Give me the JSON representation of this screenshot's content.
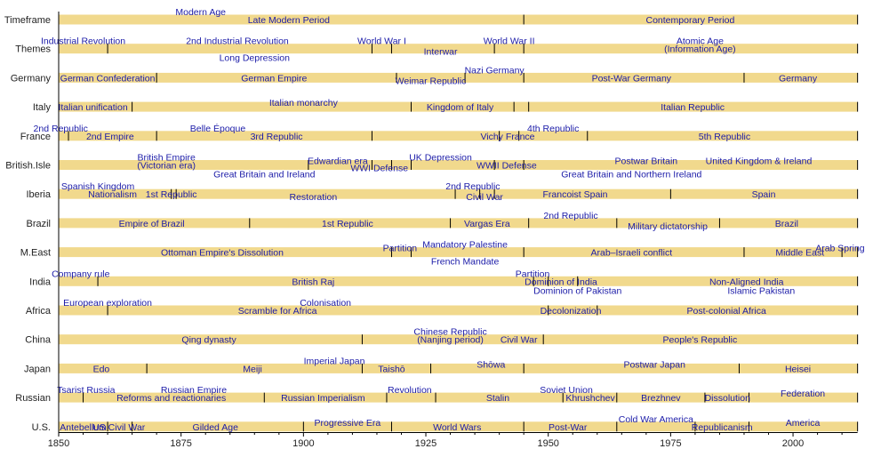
{
  "chart_data": {
    "type": "timeline",
    "xlim": [
      1850,
      2013
    ],
    "x_ticks": [
      1850,
      1875,
      1900,
      1925,
      1950,
      1975,
      2000
    ],
    "minor_tick_step": 5,
    "colors": {
      "bar": "#f1d98d",
      "label": "#1c1ca8",
      "divider": "#000000"
    },
    "rows": [
      {
        "name": "Timeframe",
        "dividers": [
          1945
        ],
        "labels": [
          {
            "text": "Modern Age",
            "year": 1879,
            "pos": "above"
          },
          {
            "text": "Late Modern Period",
            "year": 1897,
            "pos": "on"
          },
          {
            "text": "Contemporary Period",
            "year": 1979,
            "pos": "on"
          }
        ]
      },
      {
        "name": "Themes",
        "dividers": [
          1860,
          1914,
          1918,
          1939,
          1945
        ],
        "labels": [
          {
            "text": "Industrial Revolution",
            "year": 1855,
            "pos": "above"
          },
          {
            "text": "2nd Industrial Revolution",
            "year": 1886.5,
            "pos": "above"
          },
          {
            "text": "Long Depression",
            "year": 1890,
            "pos": "below"
          },
          {
            "text": "World War I",
            "year": 1916,
            "pos": "above"
          },
          {
            "text": "Interwar",
            "year": 1928,
            "pos": "low"
          },
          {
            "text": "World War II",
            "year": 1942,
            "pos": "above"
          },
          {
            "text": "Atomic Age",
            "year": 1981,
            "pos": "above"
          },
          {
            "text": "(Information Age)",
            "year": 1981,
            "pos": "on"
          }
        ]
      },
      {
        "name": "Germany",
        "dividers": [
          1870,
          1919,
          1933,
          1945,
          1990
        ],
        "labels": [
          {
            "text": "German Confederation",
            "year": 1860,
            "pos": "on"
          },
          {
            "text": "German Empire",
            "year": 1894,
            "pos": "on"
          },
          {
            "text": "Weimar Republic",
            "year": 1926,
            "pos": "low"
          },
          {
            "text": "Nazi Germany",
            "year": 1939,
            "pos": "above"
          },
          {
            "text": "Post-War Germany",
            "year": 1967,
            "pos": "on"
          },
          {
            "text": "Germany",
            "year": 2001,
            "pos": "on"
          }
        ]
      },
      {
        "name": "Italy",
        "dividers": [
          1865,
          1922,
          1943,
          1946
        ],
        "labels": [
          {
            "text": "Italian unification",
            "year": 1857,
            "pos": "on"
          },
          {
            "text": "Italian monarchy",
            "year": 1900,
            "pos": "high"
          },
          {
            "text": "Kingdom of Italy",
            "year": 1932,
            "pos": "on"
          },
          {
            "text": "Italian Republic",
            "year": 1979.5,
            "pos": "on"
          }
        ]
      },
      {
        "name": "France",
        "dividers": [
          1852,
          1870,
          1914,
          1940,
          1944,
          1958
        ],
        "labels": [
          {
            "text": "2nd Republic",
            "year": 1850.4,
            "pos": "above"
          },
          {
            "text": "2nd Empire",
            "year": 1860.5,
            "pos": "on"
          },
          {
            "text": "Belle Époque",
            "year": 1882.5,
            "pos": "above"
          },
          {
            "text": "3rd Republic",
            "year": 1894.5,
            "pos": "on"
          },
          {
            "text": "Vichy France",
            "year": 1941.7,
            "pos": "on"
          },
          {
            "text": "4th Republic",
            "year": 1951,
            "pos": "above"
          },
          {
            "text": "5th Republic",
            "year": 1986,
            "pos": "on"
          }
        ]
      },
      {
        "name": "British.Isle",
        "dividers": [
          1901,
          1914,
          1918,
          1922,
          1939,
          1945
        ],
        "labels": [
          {
            "text": "British Empire",
            "year": 1872,
            "pos": "above"
          },
          {
            "text": "(Victorian era)",
            "year": 1872,
            "pos": "on"
          },
          {
            "text": "Great Britain and Ireland",
            "year": 1892,
            "pos": "below"
          },
          {
            "text": "Edwardian era",
            "year": 1907,
            "pos": "high"
          },
          {
            "text": "WWI Defense",
            "year": 1915.5,
            "pos": "low"
          },
          {
            "text": "UK Depression",
            "year": 1928,
            "pos": "above"
          },
          {
            "text": "WWII Defense",
            "year": 1941.5,
            "pos": "on"
          },
          {
            "text": "Postwar Britain",
            "year": 1970,
            "pos": "high"
          },
          {
            "text": "United Kingdom & Ireland",
            "year": 1993,
            "pos": "high"
          },
          {
            "text": "Great Britain and Northern Ireland",
            "year": 1967,
            "pos": "below"
          }
        ]
      },
      {
        "name": "Iberia",
        "dividers": [
          1873,
          1874,
          1931,
          1936,
          1939,
          1975
        ],
        "labels": [
          {
            "text": "Spanish Kingdom",
            "year": 1858,
            "pos": "above"
          },
          {
            "text": "Nationalism",
            "year": 1861,
            "pos": "on"
          },
          {
            "text": "1st Republic",
            "year": 1873,
            "pos": "on"
          },
          {
            "text": "Restoration",
            "year": 1902,
            "pos": "low"
          },
          {
            "text": "2nd Republic",
            "year": 1934.6,
            "pos": "above"
          },
          {
            "text": "Civil War",
            "year": 1937,
            "pos": "low"
          },
          {
            "text": "Francoist Spain",
            "year": 1955.5,
            "pos": "on"
          },
          {
            "text": "Spain",
            "year": 1994,
            "pos": "on"
          }
        ]
      },
      {
        "name": "Brazil",
        "dividers": [
          1889,
          1930,
          1946,
          1964,
          1985
        ],
        "labels": [
          {
            "text": "Empire of Brazil",
            "year": 1869,
            "pos": "on"
          },
          {
            "text": "1st Republic",
            "year": 1909,
            "pos": "on"
          },
          {
            "text": "Vargas Era",
            "year": 1937.5,
            "pos": "on"
          },
          {
            "text": "2nd Republic",
            "year": 1954.6,
            "pos": "above"
          },
          {
            "text": "Military dictatorship",
            "year": 1974.4,
            "pos": "low"
          },
          {
            "text": "Brazil",
            "year": 1998.7,
            "pos": "on"
          }
        ]
      },
      {
        "name": "M.East",
        "dividers": [
          1918,
          1922,
          1945,
          1990,
          2010
        ],
        "labels": [
          {
            "text": "Ottoman Empire's Dissolution",
            "year": 1883.4,
            "pos": "on"
          },
          {
            "text": "Partition",
            "year": 1919.7,
            "pos": "high"
          },
          {
            "text": "Mandatory Palestine",
            "year": 1933,
            "pos": "above"
          },
          {
            "text": "French Mandate",
            "year": 1933,
            "pos": "below"
          },
          {
            "text": "Arab–Israeli conflict",
            "year": 1967,
            "pos": "on"
          },
          {
            "text": "Middle East",
            "year": 2001.4,
            "pos": "on"
          },
          {
            "text": "Arab Spring",
            "year": 2009.6,
            "pos": "high"
          }
        ]
      },
      {
        "name": "India",
        "dividers": [
          1858,
          1947,
          1950,
          1956
        ],
        "labels": [
          {
            "text": "Company rule",
            "year": 1854.5,
            "pos": "above"
          },
          {
            "text": "British Raj",
            "year": 1902,
            "pos": "on"
          },
          {
            "text": "Partition",
            "year": 1946.8,
            "pos": "above"
          },
          {
            "text": "Dominion of India",
            "year": 1952.6,
            "pos": "on"
          },
          {
            "text": "Dominion of Pakistan",
            "year": 1956,
            "pos": "below"
          },
          {
            "text": "Non-Aligned India",
            "year": 1990.5,
            "pos": "on"
          },
          {
            "text": "Islamic Pakistan",
            "year": 1993.5,
            "pos": "below"
          }
        ]
      },
      {
        "name": "Africa",
        "dividers": [
          1860,
          1950,
          1960
        ],
        "labels": [
          {
            "text": "European exploration",
            "year": 1860,
            "pos": "above"
          },
          {
            "text": "Colonisation",
            "year": 1904.5,
            "pos": "above"
          },
          {
            "text": "Scramble for Africa",
            "year": 1894.7,
            "pos": "on"
          },
          {
            "text": "Decolonization",
            "year": 1954.6,
            "pos": "on"
          },
          {
            "text": "Post-colonial Africa",
            "year": 1986.4,
            "pos": "on"
          }
        ]
      },
      {
        "name": "China",
        "dividers": [
          1912,
          1949
        ],
        "labels": [
          {
            "text": "Qing dynasty",
            "year": 1880.7,
            "pos": "on"
          },
          {
            "text": "Chinese Republic",
            "year": 1930,
            "pos": "above"
          },
          {
            "text": "(Nanjing period)",
            "year": 1930,
            "pos": "on"
          },
          {
            "text": "Civil War",
            "year": 1944,
            "pos": "on"
          },
          {
            "text": "People's Republic",
            "year": 1981,
            "pos": "on"
          }
        ]
      },
      {
        "name": "Japan",
        "dividers": [
          1868,
          1912,
          1926,
          1945,
          1989
        ],
        "labels": [
          {
            "text": "Edo",
            "year": 1858.7,
            "pos": "on"
          },
          {
            "text": "Meiji",
            "year": 1889.6,
            "pos": "on"
          },
          {
            "text": "Imperial Japan",
            "year": 1906.3,
            "pos": "above"
          },
          {
            "text": "Taishō",
            "year": 1918,
            "pos": "on"
          },
          {
            "text": "Shōwa",
            "year": 1938.3,
            "pos": "high"
          },
          {
            "text": "Postwar Japan",
            "year": 1971.7,
            "pos": "high"
          },
          {
            "text": "Heisei",
            "year": 2001,
            "pos": "on"
          }
        ]
      },
      {
        "name": "Russian",
        "dividers": [
          1855,
          1892,
          1917,
          1927,
          1953,
          1964,
          1982,
          1991
        ],
        "labels": [
          {
            "text": "Tsarist Russia",
            "year": 1855.6,
            "pos": "above"
          },
          {
            "text": "Russian Empire",
            "year": 1877.6,
            "pos": "above"
          },
          {
            "text": "Reforms and reactionaries",
            "year": 1873,
            "pos": "on"
          },
          {
            "text": "Russian Imperialism",
            "year": 1904,
            "pos": "on"
          },
          {
            "text": "Revolution",
            "year": 1921.7,
            "pos": "above"
          },
          {
            "text": "Stalin",
            "year": 1939.7,
            "pos": "on"
          },
          {
            "text": "Soviet Union",
            "year": 1953.7,
            "pos": "above"
          },
          {
            "text": "Khrushchev",
            "year": 1958.6,
            "pos": "on"
          },
          {
            "text": "Brezhnev",
            "year": 1973,
            "pos": "on"
          },
          {
            "text": "Dissolution",
            "year": 1986.6,
            "pos": "on"
          },
          {
            "text": "Federation",
            "year": 2002,
            "pos": "high"
          }
        ]
      },
      {
        "name": "U.S.",
        "dividers": [
          1860,
          1865,
          1900,
          1918,
          1945,
          1964,
          1980,
          1991
        ],
        "labels": [
          {
            "text": "Antebellum",
            "year": 1855,
            "pos": "on"
          },
          {
            "text": "US Civil War",
            "year": 1862.3,
            "pos": "on"
          },
          {
            "text": "Gilded Age",
            "year": 1882,
            "pos": "on"
          },
          {
            "text": "Progressive Era",
            "year": 1909,
            "pos": "high"
          },
          {
            "text": "World Wars",
            "year": 1931.4,
            "pos": "on"
          },
          {
            "text": "Post-War",
            "year": 1954,
            "pos": "on"
          },
          {
            "text": "Cold War America",
            "year": 1972,
            "pos": "above"
          },
          {
            "text": "Republicanism",
            "year": 1985.5,
            "pos": "on"
          },
          {
            "text": "America",
            "year": 2002,
            "pos": "high"
          }
        ]
      }
    ]
  }
}
